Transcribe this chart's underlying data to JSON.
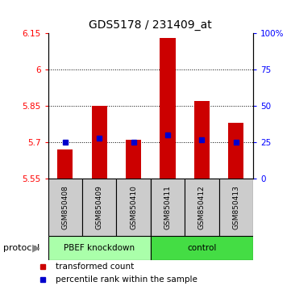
{
  "title": "GDS5178 / 231409_at",
  "samples": [
    "GSM850408",
    "GSM850409",
    "GSM850410",
    "GSM850411",
    "GSM850412",
    "GSM850413"
  ],
  "red_values": [
    5.672,
    5.85,
    5.71,
    6.13,
    5.87,
    5.78
  ],
  "blue_values": [
    5.7,
    5.718,
    5.7,
    5.73,
    5.71,
    5.7
  ],
  "bar_bottom": 5.55,
  "ylim_left": [
    5.55,
    6.15
  ],
  "ylim_right": [
    0,
    100
  ],
  "yticks_left": [
    5.55,
    5.7,
    5.85,
    6.0,
    6.15
  ],
  "yticks_right": [
    0,
    25,
    50,
    75,
    100
  ],
  "ytick_labels_left": [
    "5.55",
    "5.7",
    "5.85",
    "6",
    "6.15"
  ],
  "ytick_labels_right": [
    "0",
    "25",
    "50",
    "75",
    "100%"
  ],
  "protocol_label": "protocol",
  "red_bar_color": "#cc0000",
  "blue_marker_color": "#0000cc",
  "bar_width": 0.45,
  "sample_area_bg": "#cccccc",
  "group_area_bg_pbef": "#aaffaa",
  "group_area_bg_control": "#44dd44",
  "legend_red_label": "transformed count",
  "legend_blue_label": "percentile rank within the sample",
  "dotted_gridlines": [
    5.7,
    5.85,
    6.0
  ],
  "title_fontsize": 10
}
